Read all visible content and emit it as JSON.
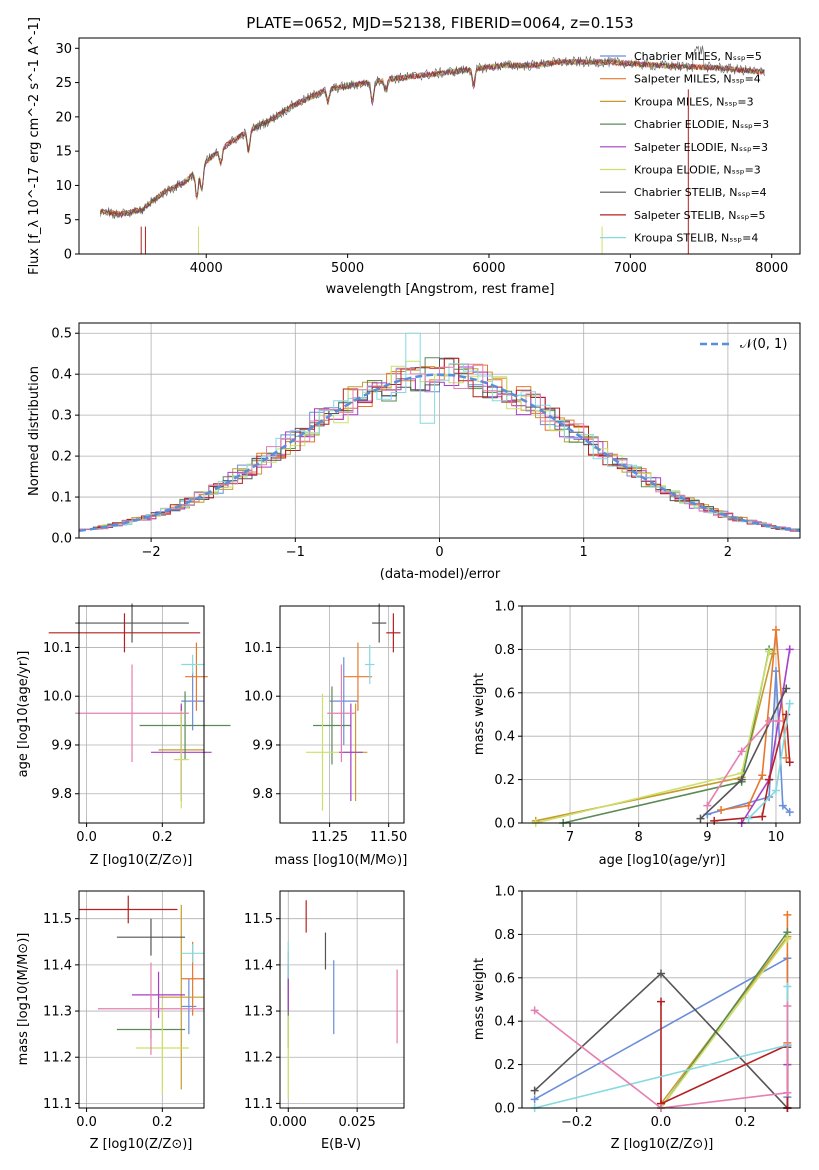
{
  "colors": [
    "#6a8ed9",
    "#e8772e",
    "#c89b2b",
    "#5a8a55",
    "#a63fc8",
    "#cbe06a",
    "#555555",
    "#b52020",
    "#85d9e0",
    "#e57fb2"
  ],
  "chart_data": [
    {
      "id": "spectrum",
      "type": "line",
      "title": "PLATE=0652, MJD=52138, FIBERID=0064, z=0.153",
      "xlabel": "wavelength [Angstrom, rest frame]",
      "ylabel": "Flux [f_λ 10^-17 erg cm^-2 s^-1 A^-1]",
      "xlim": [
        3100,
        8200
      ],
      "ylim": [
        0,
        31.5
      ],
      "xticks": [
        "4000",
        "5000",
        "6000",
        "7000",
        "8000"
      ],
      "yticks": [
        "0",
        "5",
        "10",
        "15",
        "20",
        "25",
        "30"
      ],
      "grid": false,
      "legend_position": "top-right",
      "series": [
        {
          "name": "Chabrier MILES, N_SSP=5"
        },
        {
          "name": "Salpeter MILES, N_SSP=4"
        },
        {
          "name": "Kroupa MILES, N_SSP=3"
        },
        {
          "name": "Chabrier ELODIE, N_SSP=3"
        },
        {
          "name": "Salpeter ELODIE, N_SSP=3"
        },
        {
          "name": "Kroupa ELODIE, N_SSP=3"
        },
        {
          "name": "Chabrier STELIB, N_SSP=4"
        },
        {
          "name": "Salpeter STELIB, N_SSP=5"
        },
        {
          "name": "Kroupa STELIB, N_SSP=4"
        }
      ],
      "continuum": {
        "x": [
          3250,
          3400,
          3550,
          3700,
          3850,
          4000,
          4150,
          4300,
          4450,
          4600,
          4750,
          4850,
          5000,
          5150,
          5300,
          5500,
          5700,
          5900,
          6100,
          6300,
          6500,
          6700,
          6800,
          7000,
          7200,
          7400,
          7600,
          7800,
          7950
        ],
        "y": [
          6.2,
          5.8,
          6.5,
          9.0,
          10.5,
          13.5,
          16.0,
          18.0,
          19.5,
          21.5,
          23.0,
          24.0,
          24.5,
          25.0,
          25.5,
          26.0,
          26.5,
          27.0,
          27.5,
          27.5,
          28.0,
          28.0,
          28.0,
          27.8,
          27.5,
          27.3,
          27.2,
          26.8,
          26.5
        ]
      }
    },
    {
      "id": "residuals",
      "type": "line",
      "xlabel": "(data-model)/error",
      "ylabel": "Normed distribution",
      "xlim": [
        -2.5,
        2.5
      ],
      "ylim": [
        0,
        0.525
      ],
      "xticks": [
        "−2",
        "−1",
        "0",
        "1",
        "2"
      ],
      "yticks": [
        "0.0",
        "0.1",
        "0.2",
        "0.3",
        "0.4",
        "0.5"
      ],
      "grid": true,
      "legend_position": "top-right",
      "legend_label": "𝒩(0, 1)"
    },
    {
      "id": "age-vs-Z",
      "type": "scatter",
      "xlabel": "Z [log10(Z/Z⊙)]",
      "ylabel": "age [log10(age/yr)]",
      "xlim": [
        -0.02,
        0.31
      ],
      "ylim": [
        9.74,
        10.185
      ],
      "xticks": [
        "0.0",
        "0.2"
      ],
      "yticks": [
        "9.8",
        "9.9",
        "10.0",
        "10.1"
      ],
      "grid": true,
      "points": [
        {
          "x": 0.28,
          "y": 9.99,
          "xerr": 0.03,
          "yerr": 0.06
        },
        {
          "x": 0.29,
          "y": 10.04,
          "xerr": 0.03,
          "yerr": 0.07
        },
        {
          "x": 0.25,
          "y": 9.89,
          "xerr": 0.06,
          "yerr": 0.09
        },
        {
          "x": 0.26,
          "y": 9.94,
          "xerr": 0.12,
          "yerr": 0.07
        },
        {
          "x": 0.25,
          "y": 9.885,
          "xerr": 0.08,
          "yerr": 0.1
        },
        {
          "x": 0.25,
          "y": 9.87,
          "xerr": 0.02,
          "yerr": 0.1
        },
        {
          "x": 0.12,
          "y": 10.15,
          "xerr": 0.15,
          "yerr": 0.04
        },
        {
          "x": 0.1,
          "y": 10.13,
          "xerr": 0.2,
          "yerr": 0.04
        },
        {
          "x": 0.28,
          "y": 10.065,
          "xerr": 0.03,
          "yerr": 0.02
        },
        {
          "x": 0.12,
          "y": 9.965,
          "xerr": 0.15,
          "yerr": 0.1
        }
      ]
    },
    {
      "id": "age-vs-mass",
      "type": "scatter",
      "xlabel": "mass [log10(M/M⊙)]",
      "ylabel": "",
      "xlim": [
        11.04,
        11.565
      ],
      "ylim": [
        9.74,
        10.185
      ],
      "xticks": [
        "11.25",
        "11.50"
      ],
      "yticks": [
        "9.8",
        "9.9",
        "10.0",
        "10.1"
      ],
      "grid": true,
      "points": [
        {
          "x": 11.31,
          "y": 9.99,
          "xerr": 0.06,
          "yerr": 0.09
        },
        {
          "x": 11.37,
          "y": 10.04,
          "xerr": 0.06,
          "yerr": 0.07
        },
        {
          "x": 11.36,
          "y": 9.885,
          "xerr": 0.05,
          "yerr": 0.1
        },
        {
          "x": 11.26,
          "y": 9.94,
          "xerr": 0.08,
          "yerr": 0.08
        },
        {
          "x": 11.34,
          "y": 9.885,
          "xerr": 0.05,
          "yerr": 0.1
        },
        {
          "x": 11.22,
          "y": 9.885,
          "xerr": 0.07,
          "yerr": 0.12
        },
        {
          "x": 11.46,
          "y": 10.15,
          "xerr": 0.03,
          "yerr": 0.04
        },
        {
          "x": 11.52,
          "y": 10.13,
          "xerr": 0.03,
          "yerr": 0.04
        },
        {
          "x": 11.42,
          "y": 10.065,
          "xerr": 0.02,
          "yerr": 0.04
        },
        {
          "x": 11.3,
          "y": 9.965,
          "xerr": 0.06,
          "yerr": 0.1
        }
      ]
    },
    {
      "id": "weight-vs-age",
      "type": "line",
      "xlabel": "age [log10(age/yr)]",
      "ylabel": "mass weight",
      "xlim": [
        6.3,
        10.35
      ],
      "ylim": [
        0,
        1.0
      ],
      "xticks": [
        "7",
        "8",
        "9",
        "10"
      ],
      "yticks": [
        "0.0",
        "0.2",
        "0.4",
        "0.6",
        "0.8",
        "1.0"
      ],
      "grid": true,
      "series": [
        {
          "x": [
            9.0,
            9.9,
            10.0,
            10.1,
            10.2
          ],
          "y": [
            0.04,
            0.12,
            0.7,
            0.08,
            0.05
          ]
        },
        {
          "x": [
            9.2,
            9.6,
            9.8,
            10.0,
            10.15
          ],
          "y": [
            0.06,
            0.08,
            0.22,
            0.89,
            0.3
          ]
        },
        {
          "x": [
            6.5,
            9.5,
            9.95
          ],
          "y": [
            0.01,
            0.21,
            0.78
          ]
        },
        {
          "x": [
            6.9,
            9.5,
            9.9
          ],
          "y": [
            0.0,
            0.19,
            0.8
          ]
        },
        {
          "x": [
            9.5,
            9.9,
            10.2
          ],
          "y": [
            0.0,
            0.2,
            0.8
          ]
        },
        {
          "x": [
            6.5,
            9.5,
            9.9
          ],
          "y": [
            0.0,
            0.23,
            0.79
          ]
        },
        {
          "x": [
            8.9,
            9.5,
            10.15
          ],
          "y": [
            0.02,
            0.2,
            0.62
          ]
        },
        {
          "x": [
            9.1,
            9.8,
            9.9,
            10.15,
            10.2
          ],
          "y": [
            0.01,
            0.03,
            0.2,
            0.5,
            0.28
          ]
        },
        {
          "x": [
            9.6,
            10.0,
            10.2
          ],
          "y": [
            0.02,
            0.15,
            0.55
          ]
        },
        {
          "x": [
            9.0,
            9.5,
            9.9,
            10.05
          ],
          "y": [
            0.08,
            0.33,
            0.47,
            0.47
          ]
        }
      ]
    },
    {
      "id": "mass-vs-Z",
      "type": "scatter",
      "xlabel": "Z [log10(Z/Z⊙)]",
      "ylabel": "mass [log10(M/M⊙)]",
      "xlim": [
        -0.02,
        0.31
      ],
      "ylim": [
        11.09,
        11.56
      ],
      "xticks": [
        "0.0",
        "0.2"
      ],
      "yticks": [
        "11.1",
        "11.2",
        "11.3",
        "11.4",
        "11.5"
      ],
      "grid": true,
      "points": [
        {
          "x": 0.27,
          "y": 11.31,
          "xerr": 0.02,
          "yerr": 0.06
        },
        {
          "x": 0.28,
          "y": 11.37,
          "xerr": 0.03,
          "yerr": 0.08
        },
        {
          "x": 0.25,
          "y": 11.33,
          "xerr": 0.06,
          "yerr": 0.2
        },
        {
          "x": 0.17,
          "y": 11.26,
          "xerr": 0.09,
          "yerr": 0.02
        },
        {
          "x": 0.19,
          "y": 11.335,
          "xerr": 0.07,
          "yerr": 0.05
        },
        {
          "x": 0.2,
          "y": 11.22,
          "xerr": 0.07,
          "yerr": 0.1
        },
        {
          "x": 0.17,
          "y": 11.46,
          "xerr": 0.09,
          "yerr": 0.04
        },
        {
          "x": 0.11,
          "y": 11.52,
          "xerr": 0.13,
          "yerr": 0.03
        },
        {
          "x": 0.28,
          "y": 11.425,
          "xerr": 0.03,
          "yerr": 0.02
        },
        {
          "x": 0.17,
          "y": 11.305,
          "xerr": 0.14,
          "yerr": 0.1
        }
      ]
    },
    {
      "id": "mass-vs-EBV",
      "type": "scatter",
      "xlabel": "E(B-V)",
      "ylabel": "",
      "xlim": [
        -0.003,
        0.042
      ],
      "ylim": [
        11.09,
        11.56
      ],
      "xticks": [
        "0.000",
        "0.025"
      ],
      "yticks": [
        "11.1",
        "11.2",
        "11.3",
        "11.4",
        "11.5"
      ],
      "grid": true,
      "points": [
        {
          "x": 0.0165,
          "y": 11.33,
          "yerr": 0.08
        },
        {
          "x": 0.0,
          "y": 11.37,
          "yerr": 0.06
        },
        {
          "x": 0.0,
          "y": 11.34,
          "yerr": 0.05
        },
        {
          "x": 0.0,
          "y": 11.3,
          "yerr": 0.08
        },
        {
          "x": 0.0,
          "y": 11.35,
          "yerr": 0.05
        },
        {
          "x": 0.0,
          "y": 11.2,
          "yerr": 0.09
        },
        {
          "x": 0.0135,
          "y": 11.43,
          "yerr": 0.04
        },
        {
          "x": 0.0065,
          "y": 11.505,
          "yerr": 0.035
        },
        {
          "x": 0.0,
          "y": 11.41,
          "yerr": 0.04
        },
        {
          "x": 0.0395,
          "y": 11.31,
          "yerr": 0.08
        }
      ]
    },
    {
      "id": "weight-vs-Z",
      "type": "line",
      "xlabel": "Z [log10(Z/Z⊙)]",
      "ylabel": "mass weight",
      "xlim": [
        -0.33,
        0.33
      ],
      "ylim": [
        0,
        1.0
      ],
      "xticks": [
        "−0.2",
        "0.0",
        "0.2"
      ],
      "yticks": [
        "0.0",
        "0.2",
        "0.4",
        "0.6",
        "0.8",
        "1.0"
      ],
      "grid": true,
      "series": [
        {
          "x": [
            -0.3,
            0.3,
            0.3
          ],
          "y": [
            0.04,
            0.69,
            0.05
          ]
        },
        {
          "x": [
            0.3,
            0.3,
            0.3
          ],
          "y": [
            0.0,
            0.89,
            0.3
          ]
        },
        {
          "x": [
            0.0,
            0.3
          ],
          "y": [
            0.02,
            0.79
          ]
        },
        {
          "x": [
            0.0,
            0.3
          ],
          "y": [
            0.0,
            0.81
          ]
        },
        {
          "x": [
            0.3,
            0.3
          ],
          "y": [
            0.0,
            0.2
          ]
        },
        {
          "x": [
            0.0,
            0.3
          ],
          "y": [
            0.0,
            0.78
          ]
        },
        {
          "x": [
            -0.3,
            0.0,
            0.3,
            0.3
          ],
          "y": [
            0.08,
            0.62,
            0.0,
            0.28
          ]
        },
        {
          "x": [
            0.0,
            0.0,
            0.3,
            0.3
          ],
          "y": [
            0.49,
            0.02,
            0.29,
            0.0
          ]
        },
        {
          "x": [
            -0.3,
            0.3,
            0.3
          ],
          "y": [
            0.0,
            0.29,
            0.56
          ]
        },
        {
          "x": [
            -0.3,
            0.0,
            0.3,
            0.3
          ],
          "y": [
            0.45,
            0.0,
            0.07,
            0.47
          ]
        }
      ]
    }
  ]
}
